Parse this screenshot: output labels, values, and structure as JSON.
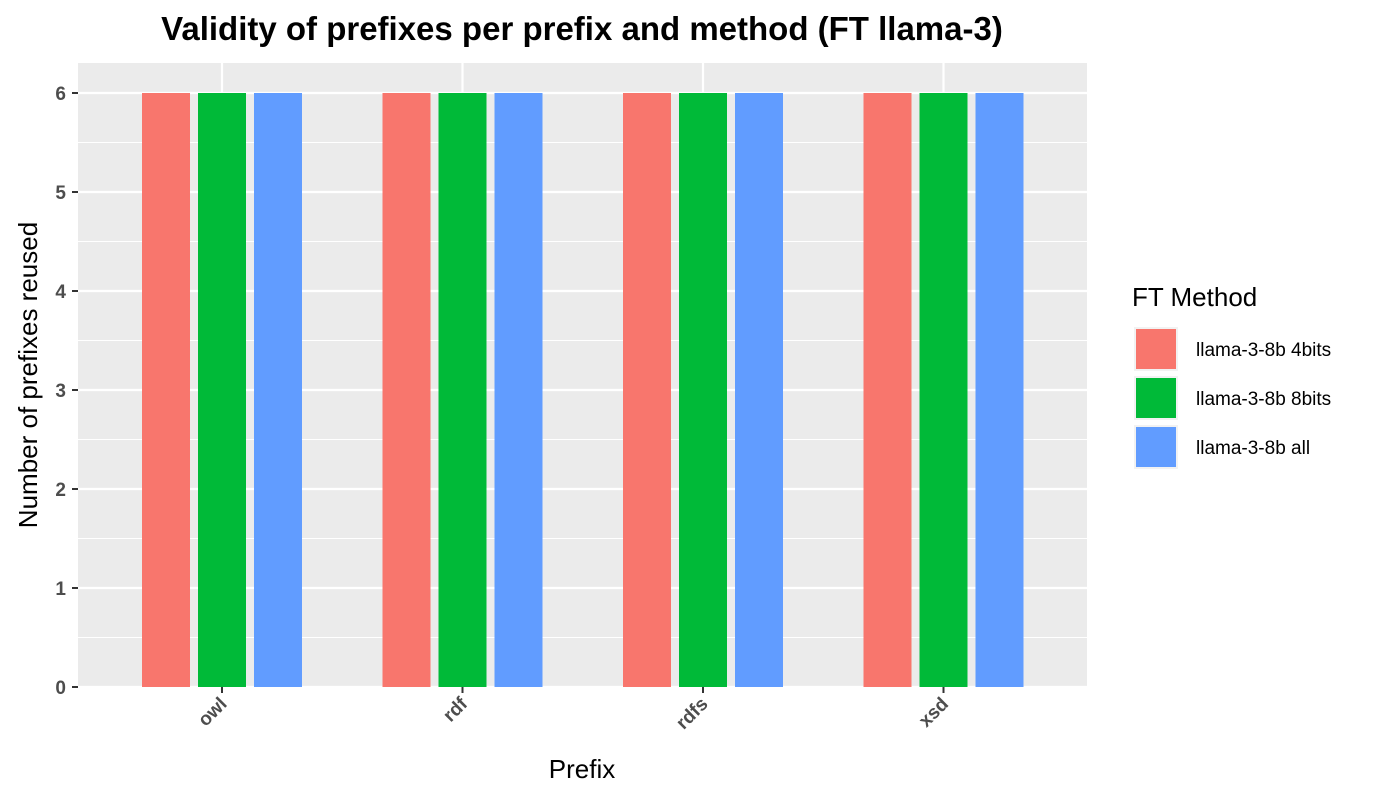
{
  "chart_data": {
    "type": "bar",
    "title": "Validity of prefixes per prefix and method (FT llama-3)",
    "xlabel": "Prefix",
    "ylabel": "Number of prefixes reused",
    "categories": [
      "owl",
      "rdf",
      "rdfs",
      "xsd"
    ],
    "series": [
      {
        "name": "llama-3-8b 4bits",
        "color": "#F8766D",
        "values": [
          6,
          6,
          6,
          6
        ]
      },
      {
        "name": "llama-3-8b 8bits",
        "color": "#00BA38",
        "values": [
          6,
          6,
          6,
          6
        ]
      },
      {
        "name": "llama-3-8b all",
        "color": "#619CFF",
        "values": [
          6,
          6,
          6,
          6
        ]
      }
    ],
    "ylim": [
      0,
      6
    ],
    "yticks": [
      "0",
      "1",
      "2",
      "3",
      "4",
      "5",
      "6"
    ],
    "grid": true,
    "legend": {
      "title": "FT Method",
      "position": "right"
    },
    "panel_background": "#EBEBEB",
    "grid_color": "#FFFFFF"
  }
}
